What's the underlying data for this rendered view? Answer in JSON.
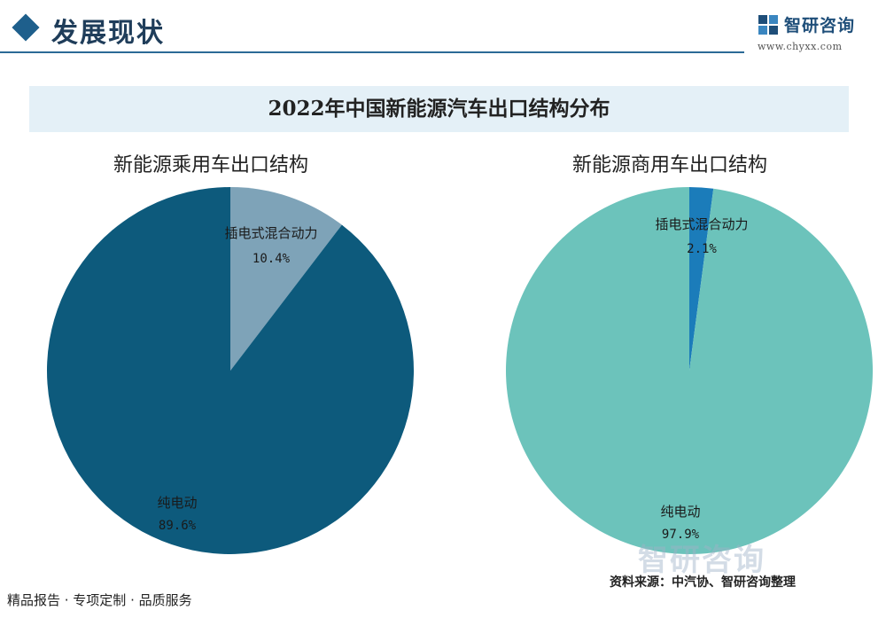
{
  "header": {
    "section_title": "发展现状",
    "logo_text": "智研咨询",
    "logo_url": "www.chyxx.com"
  },
  "title": "2022年中国新能源汽车出口结构分布",
  "chart_data": [
    {
      "type": "pie",
      "title": "新能源乘用车出口结构",
      "categories": [
        "纯电动",
        "插电式混合动力"
      ],
      "values": [
        89.6,
        10.4
      ],
      "value_labels": [
        "89.6%",
        "10.4%"
      ],
      "colors": [
        "#0d5a7c",
        "#7ea3b8"
      ]
    },
    {
      "type": "pie",
      "title": "新能源商用车出口结构",
      "categories": [
        "纯电动",
        "插电式混合动力"
      ],
      "values": [
        97.9,
        2.1
      ],
      "value_labels": [
        "97.9%",
        "2.1%"
      ],
      "colors": [
        "#6cc3bb",
        "#1b7cba"
      ]
    }
  ],
  "footer": {
    "left": "精品报告 · 专项定制 · 品质服务",
    "source": "资料来源：中汽协、智研咨询整理"
  }
}
